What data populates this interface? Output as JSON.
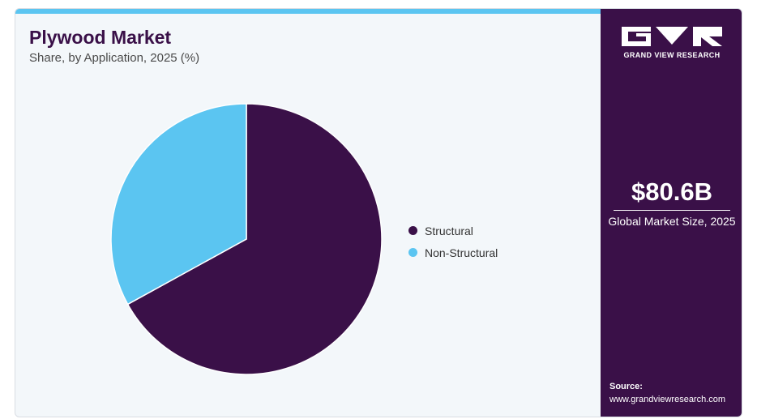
{
  "header": {
    "title": "Plywood Market",
    "subtitle": "Share, by Application, 2025 (%)"
  },
  "chart_data": {
    "type": "pie",
    "title": "Plywood Market",
    "subtitle": "Share, by Application, 2025 (%)",
    "categories": [
      "Structural",
      "Non-Structural"
    ],
    "values": [
      67,
      33
    ],
    "colors": [
      "#3a1048",
      "#5bc5f1"
    ],
    "legend_position": "right"
  },
  "sidebar": {
    "brand": "GRAND VIEW RESEARCH",
    "market_value": "$80.6B",
    "market_label": "Global Market Size, 2025",
    "source_label": "Source:",
    "source_url": "www.grandviewresearch.com"
  },
  "colors": {
    "brand_purple": "#3a1048",
    "accent_blue": "#5bc5f1",
    "background": "#f3f7fa"
  }
}
